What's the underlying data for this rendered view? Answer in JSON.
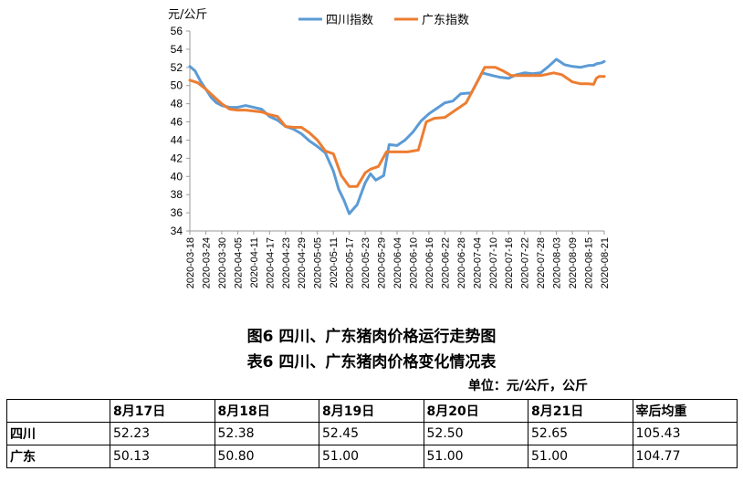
{
  "chart_data": {
    "type": "line",
    "ylabel": "元/公斤",
    "ylim": [
      34,
      56
    ],
    "yticks": [
      34,
      36,
      38,
      40,
      42,
      44,
      46,
      48,
      50,
      52,
      54,
      56
    ],
    "grid": false,
    "legend_position": "top-center",
    "x_tick_labels": [
      "2020-03-18",
      "2020-03-24",
      "2020-03-30",
      "2020-04-05",
      "2020-04-11",
      "2020-04-17",
      "2020-04-23",
      "2020-04-29",
      "2020-05-05",
      "2020-05-11",
      "2020-05-17",
      "2020-05-23",
      "2020-05-29",
      "2020-06-04",
      "2020-06-10",
      "2020-06-16",
      "2020-06-22",
      "2020-06-28",
      "2020-07-04",
      "2020-07-10",
      "2020-07-16",
      "2020-07-22",
      "2020-07-28",
      "2020-08-03",
      "2020-08-09",
      "2020-08-15",
      "2020-08-21"
    ],
    "x_start": "2020-03-18",
    "x_end": "2020-08-21",
    "series": [
      {
        "name": "四川指数",
        "color": "#5B9BD5",
        "points": [
          [
            "2020-03-18",
            52.1
          ],
          [
            "2020-03-20",
            51.6
          ],
          [
            "2020-03-22",
            50.5
          ],
          [
            "2020-03-24",
            49.6
          ],
          [
            "2020-03-26",
            48.7
          ],
          [
            "2020-03-28",
            48.1
          ],
          [
            "2020-03-30",
            47.8
          ],
          [
            "2020-04-02",
            47.6
          ],
          [
            "2020-04-05",
            47.6
          ],
          [
            "2020-04-08",
            47.8
          ],
          [
            "2020-04-11",
            47.6
          ],
          [
            "2020-04-14",
            47.4
          ],
          [
            "2020-04-17",
            46.6
          ],
          [
            "2020-04-20",
            46.2
          ],
          [
            "2020-04-23",
            45.5
          ],
          [
            "2020-04-26",
            45.2
          ],
          [
            "2020-04-29",
            44.7
          ],
          [
            "2020-05-02",
            43.9
          ],
          [
            "2020-05-05",
            43.3
          ],
          [
            "2020-05-08",
            42.6
          ],
          [
            "2020-05-11",
            40.6
          ],
          [
            "2020-05-13",
            38.6
          ],
          [
            "2020-05-15",
            37.4
          ],
          [
            "2020-05-17",
            35.9
          ],
          [
            "2020-05-20",
            36.9
          ],
          [
            "2020-05-23",
            39.3
          ],
          [
            "2020-05-25",
            40.3
          ],
          [
            "2020-05-27",
            39.6
          ],
          [
            "2020-05-30",
            40.1
          ],
          [
            "2020-06-01",
            43.5
          ],
          [
            "2020-06-04",
            43.4
          ],
          [
            "2020-06-07",
            44.0
          ],
          [
            "2020-06-10",
            44.9
          ],
          [
            "2020-06-13",
            46.1
          ],
          [
            "2020-06-16",
            46.9
          ],
          [
            "2020-06-19",
            47.5
          ],
          [
            "2020-06-22",
            48.1
          ],
          [
            "2020-06-25",
            48.3
          ],
          [
            "2020-06-28",
            49.1
          ],
          [
            "2020-07-02",
            49.2
          ],
          [
            "2020-07-06",
            51.4
          ],
          [
            "2020-07-10",
            51.1
          ],
          [
            "2020-07-13",
            50.9
          ],
          [
            "2020-07-16",
            50.8
          ],
          [
            "2020-07-19",
            51.2
          ],
          [
            "2020-07-22",
            51.4
          ],
          [
            "2020-07-25",
            51.3
          ],
          [
            "2020-07-28",
            51.4
          ],
          [
            "2020-07-31",
            52.1
          ],
          [
            "2020-08-03",
            52.9
          ],
          [
            "2020-08-06",
            52.3
          ],
          [
            "2020-08-09",
            52.1
          ],
          [
            "2020-08-12",
            52.0
          ],
          [
            "2020-08-15",
            52.2
          ],
          [
            "2020-08-17",
            52.23
          ],
          [
            "2020-08-18",
            52.38
          ],
          [
            "2020-08-19",
            52.45
          ],
          [
            "2020-08-20",
            52.5
          ],
          [
            "2020-08-21",
            52.65
          ]
        ]
      },
      {
        "name": "广东指数",
        "color": "#ED7D31",
        "points": [
          [
            "2020-03-18",
            50.6
          ],
          [
            "2020-03-21",
            50.3
          ],
          [
            "2020-03-24",
            49.6
          ],
          [
            "2020-03-27",
            48.8
          ],
          [
            "2020-03-30",
            48.0
          ],
          [
            "2020-04-02",
            47.4
          ],
          [
            "2020-04-05",
            47.3
          ],
          [
            "2020-04-08",
            47.3
          ],
          [
            "2020-04-11",
            47.2
          ],
          [
            "2020-04-14",
            47.1
          ],
          [
            "2020-04-17",
            46.8
          ],
          [
            "2020-04-20",
            46.6
          ],
          [
            "2020-04-23",
            45.5
          ],
          [
            "2020-04-26",
            45.4
          ],
          [
            "2020-04-29",
            45.4
          ],
          [
            "2020-05-02",
            44.8
          ],
          [
            "2020-05-05",
            44.0
          ],
          [
            "2020-05-08",
            42.8
          ],
          [
            "2020-05-11",
            42.5
          ],
          [
            "2020-05-14",
            40.1
          ],
          [
            "2020-05-17",
            38.9
          ],
          [
            "2020-05-20",
            38.9
          ],
          [
            "2020-05-23",
            40.4
          ],
          [
            "2020-05-25",
            40.8
          ],
          [
            "2020-05-28",
            41.1
          ],
          [
            "2020-05-31",
            42.7
          ],
          [
            "2020-06-04",
            42.7
          ],
          [
            "2020-06-08",
            42.7
          ],
          [
            "2020-06-12",
            42.9
          ],
          [
            "2020-06-15",
            46.0
          ],
          [
            "2020-06-18",
            46.4
          ],
          [
            "2020-06-22",
            46.5
          ],
          [
            "2020-06-26",
            47.3
          ],
          [
            "2020-06-30",
            48.1
          ],
          [
            "2020-07-04",
            50.3
          ],
          [
            "2020-07-07",
            52.0
          ],
          [
            "2020-07-11",
            52.0
          ],
          [
            "2020-07-14",
            51.6
          ],
          [
            "2020-07-17",
            51.1
          ],
          [
            "2020-07-22",
            51.1
          ],
          [
            "2020-07-28",
            51.1
          ],
          [
            "2020-08-02",
            51.4
          ],
          [
            "2020-08-05",
            51.2
          ],
          [
            "2020-08-09",
            50.4
          ],
          [
            "2020-08-12",
            50.2
          ],
          [
            "2020-08-15",
            50.2
          ],
          [
            "2020-08-17",
            50.13
          ],
          [
            "2020-08-18",
            50.8
          ],
          [
            "2020-08-19",
            51.0
          ],
          [
            "2020-08-20",
            51.0
          ],
          [
            "2020-08-21",
            51.0
          ]
        ]
      }
    ]
  },
  "caption_figure": "图6 四川、广东猪肉价格运行走势图",
  "caption_table": "表6 四川、广东猪肉价格变化情况表",
  "unit_text": "单位：元/公斤，公斤",
  "table": {
    "headers": [
      "",
      "8月17日",
      "8月18日",
      "8月19日",
      "8月20日",
      "8月21日",
      "宰后均重"
    ],
    "rows": [
      {
        "label": "四川",
        "cells": [
          "52.23",
          "52.38",
          "52.45",
          "52.50",
          "52.65",
          "105.43"
        ]
      },
      {
        "label": "广东",
        "cells": [
          "50.13",
          "50.80",
          "51.00",
          "51.00",
          "51.00",
          "104.77"
        ]
      }
    ]
  }
}
